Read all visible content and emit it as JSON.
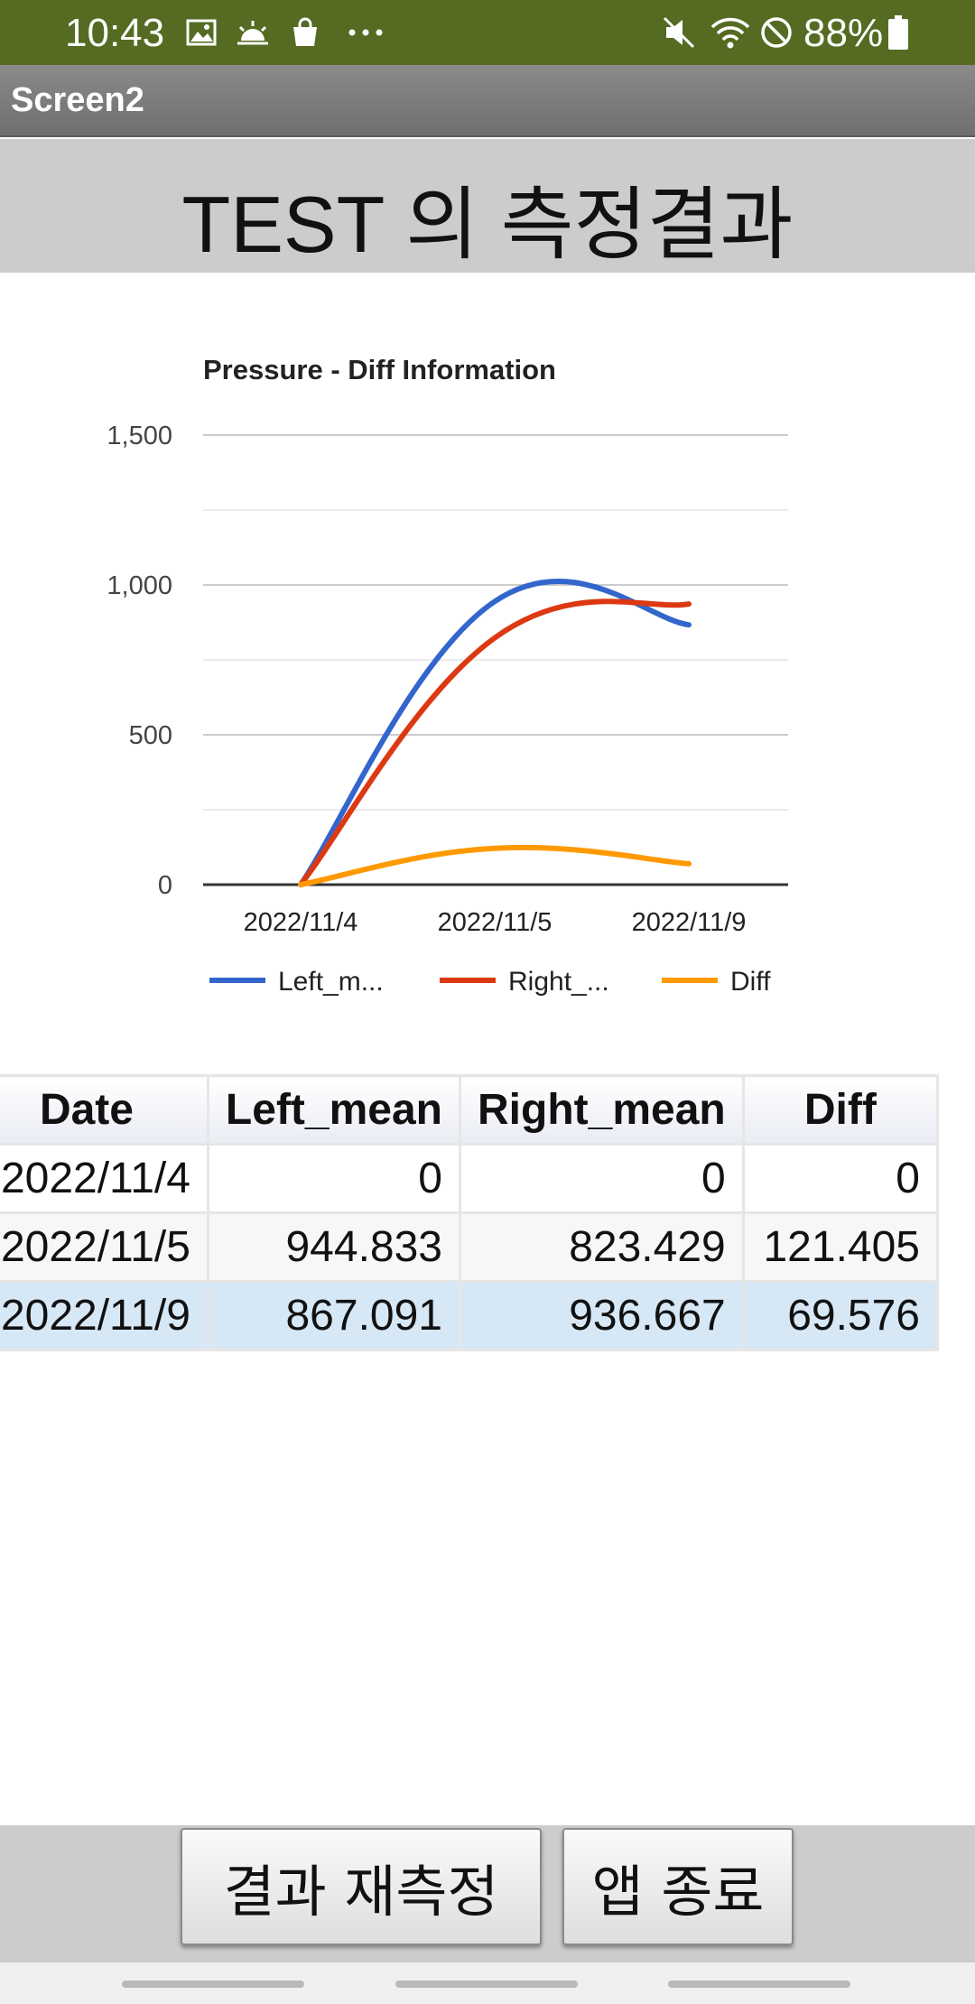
{
  "status_bar": {
    "time": "10:43",
    "battery": "88%",
    "icons": [
      "image-icon",
      "weather-sunrise-icon",
      "shopping-bag-icon",
      "more-dots-icon",
      "mute-icon",
      "wifi-icon",
      "do-not-disturb-icon",
      "battery-icon"
    ]
  },
  "app_bar": {
    "title": "Screen2"
  },
  "header": {
    "title": "TEST 의 측정결과"
  },
  "chart_data": {
    "type": "line",
    "title": "Pressure - Diff Information",
    "categories": [
      "2022/11/4",
      "2022/11/5",
      "2022/11/9"
    ],
    "series": [
      {
        "name": "Left_m...",
        "color": "#3366cc",
        "values": [
          0,
          944.833,
          867.091
        ]
      },
      {
        "name": "Right_...",
        "color": "#dc3912",
        "values": [
          0,
          823.429,
          936.667
        ]
      },
      {
        "name": "Diff",
        "color": "#ff9900",
        "values": [
          0,
          121.405,
          69.576
        ]
      }
    ],
    "ylim": [
      0,
      1500
    ],
    "yticks": [
      "0",
      "500",
      "1,000",
      "1,500"
    ],
    "grid": true,
    "legend_position": "bottom",
    "curve": "smooth"
  },
  "table": {
    "headers": [
      "Date",
      "Left_mean",
      "Right_mean",
      "Diff"
    ],
    "rows": [
      [
        "2022/11/4",
        "0",
        "0",
        "0"
      ],
      [
        "2022/11/5",
        "944.833",
        "823.429",
        "121.405"
      ],
      [
        "2022/11/9",
        "867.091",
        "936.667",
        "69.576"
      ]
    ]
  },
  "footer": {
    "remeasure_label": "결과 재측정",
    "exit_label": "앱 종료"
  },
  "colors": {
    "status_bar": "#556b22",
    "header_band": "#cccccc",
    "selected_row": "#d6e7f6"
  }
}
